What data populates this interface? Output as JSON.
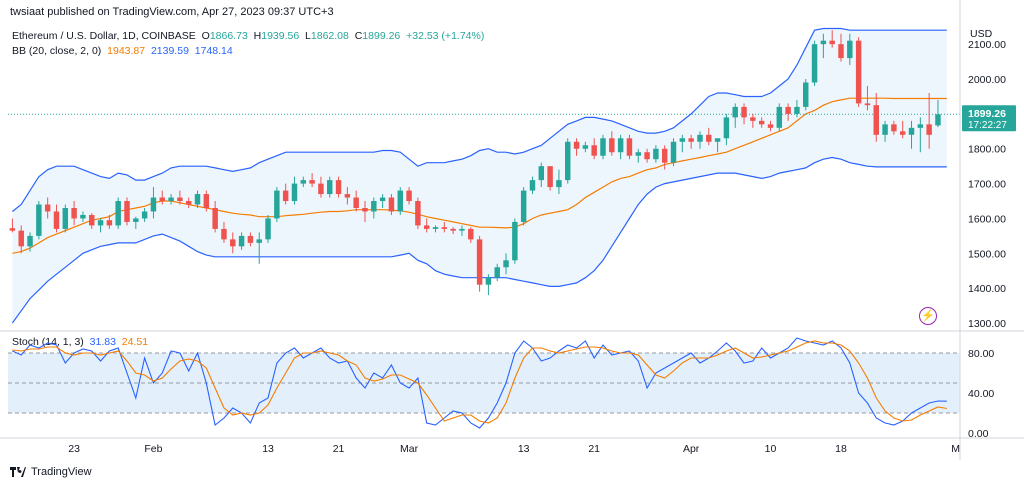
{
  "header": {
    "publish_line": "twsiaat published on TradingView.com, Apr 27, 2023 09:37 UTC+3"
  },
  "legend": {
    "symbol": "Ethereum / U.S. Dollar, 1D, COINBASE",
    "o_label": "O",
    "o_value": "1866.73",
    "h_label": "H",
    "h_value": "1939.56",
    "l_label": "L",
    "l_value": "1862.08",
    "c_label": "C",
    "c_value": "1899.26",
    "change": "+32.53 (+1.74%)",
    "bb_label": "BB (20, close, 2, 0)",
    "bb_basis": "1943.87",
    "bb_upper": "2139.59",
    "bb_lower": "1748.14",
    "stoch_label": "Stoch (14, 1, 3)",
    "stoch_k": "31.83",
    "stoch_d": "24.51"
  },
  "price_tag": {
    "price": "1899.26",
    "countdown": "17:22:27"
  },
  "footer": {
    "brand": "TradingView"
  },
  "colors": {
    "up": "#26a69a",
    "down": "#ef5350",
    "band": "#2962ff",
    "basis": "#f57c00",
    "band_fill": "#eef6fd",
    "stoch_fill": "#e3f0fb"
  },
  "icons": {
    "indicator_icon": "lightning-icon",
    "brand_icon": "tradingview-logo-icon"
  },
  "chart_data": [
    {
      "type": "candlestick",
      "title": "Ethereum / U.S. Dollar, 1D, COINBASE",
      "y_axis_label": "USD",
      "y_ticks": [
        1300,
        1400,
        1500,
        1600,
        1700,
        1800,
        1900,
        2000,
        2100
      ],
      "y_tick_labels": [
        "1300.00",
        "1400.00",
        "1500.00",
        "1600.00",
        "1700.00",
        "1800.00",
        "1900.00",
        "2000.00",
        "2100.00"
      ],
      "ylim": [
        1280,
        2155
      ],
      "x_ticks": [
        {
          "i": 7,
          "label": "23"
        },
        {
          "i": 16,
          "label": "Feb"
        },
        {
          "i": 29,
          "label": "13"
        },
        {
          "i": 37,
          "label": "21"
        },
        {
          "i": 45,
          "label": "Mar"
        },
        {
          "i": 58,
          "label": "13"
        },
        {
          "i": 66,
          "label": "21"
        },
        {
          "i": 77,
          "label": "Apr"
        },
        {
          "i": 86,
          "label": "10"
        },
        {
          "i": 94,
          "label": "18"
        },
        {
          "i": 107,
          "label": "M"
        }
      ],
      "x_count": 108,
      "ohlc": [
        [
          1572,
          1600,
          1560,
          1565
        ],
        [
          1565,
          1580,
          1500,
          1520
        ],
        [
          1520,
          1560,
          1505,
          1550
        ],
        [
          1550,
          1650,
          1540,
          1640
        ],
        [
          1640,
          1660,
          1600,
          1620
        ],
        [
          1620,
          1640,
          1560,
          1570
        ],
        [
          1570,
          1640,
          1560,
          1630
        ],
        [
          1630,
          1650,
          1580,
          1600
        ],
        [
          1600,
          1620,
          1590,
          1610
        ],
        [
          1610,
          1615,
          1570,
          1580
        ],
        [
          1580,
          1600,
          1560,
          1595
        ],
        [
          1595,
          1610,
          1570,
          1580
        ],
        [
          1580,
          1660,
          1570,
          1650
        ],
        [
          1650,
          1660,
          1580,
          1590
        ],
        [
          1590,
          1605,
          1570,
          1600
        ],
        [
          1600,
          1630,
          1590,
          1620
        ],
        [
          1620,
          1690,
          1600,
          1660
        ],
        [
          1660,
          1680,
          1640,
          1650
        ],
        [
          1650,
          1670,
          1640,
          1660
        ],
        [
          1660,
          1680,
          1640,
          1650
        ],
        [
          1650,
          1660,
          1630,
          1640
        ],
        [
          1640,
          1680,
          1630,
          1670
        ],
        [
          1670,
          1680,
          1620,
          1630
        ],
        [
          1630,
          1650,
          1560,
          1570
        ],
        [
          1570,
          1590,
          1530,
          1540
        ],
        [
          1540,
          1560,
          1500,
          1520
        ],
        [
          1520,
          1560,
          1510,
          1550
        ],
        [
          1550,
          1560,
          1520,
          1530
        ],
        [
          1530,
          1560,
          1470,
          1540
        ],
        [
          1540,
          1610,
          1530,
          1600
        ],
        [
          1600,
          1690,
          1590,
          1680
        ],
        [
          1680,
          1700,
          1640,
          1650
        ],
        [
          1650,
          1720,
          1640,
          1700
        ],
        [
          1700,
          1720,
          1690,
          1710
        ],
        [
          1710,
          1730,
          1690,
          1700
        ],
        [
          1700,
          1720,
          1660,
          1670
        ],
        [
          1670,
          1720,
          1660,
          1710
        ],
        [
          1710,
          1720,
          1660,
          1670
        ],
        [
          1670,
          1690,
          1640,
          1660
        ],
        [
          1660,
          1680,
          1620,
          1630
        ],
        [
          1630,
          1650,
          1590,
          1620
        ],
        [
          1620,
          1660,
          1600,
          1650
        ],
        [
          1650,
          1670,
          1630,
          1660
        ],
        [
          1660,
          1670,
          1610,
          1620
        ],
        [
          1620,
          1690,
          1610,
          1680
        ],
        [
          1680,
          1690,
          1640,
          1650
        ],
        [
          1650,
          1660,
          1570,
          1580
        ],
        [
          1580,
          1600,
          1560,
          1570
        ],
        [
          1570,
          1580,
          1560,
          1575
        ],
        [
          1575,
          1590,
          1560,
          1570
        ],
        [
          1570,
          1575,
          1555,
          1565
        ],
        [
          1565,
          1580,
          1550,
          1570
        ],
        [
          1570,
          1575,
          1530,
          1540
        ],
        [
          1540,
          1550,
          1390,
          1410
        ],
        [
          1410,
          1440,
          1380,
          1430
        ],
        [
          1430,
          1470,
          1420,
          1460
        ],
        [
          1460,
          1500,
          1440,
          1480
        ],
        [
          1480,
          1600,
          1470,
          1590
        ],
        [
          1590,
          1690,
          1580,
          1680
        ],
        [
          1680,
          1720,
          1670,
          1710
        ],
        [
          1710,
          1760,
          1690,
          1750
        ],
        [
          1750,
          1750,
          1680,
          1690
        ],
        [
          1690,
          1740,
          1670,
          1710
        ],
        [
          1710,
          1830,
          1700,
          1820
        ],
        [
          1820,
          1830,
          1780,
          1800
        ],
        [
          1800,
          1820,
          1790,
          1810
        ],
        [
          1810,
          1830,
          1770,
          1780
        ],
        [
          1780,
          1840,
          1770,
          1830
        ],
        [
          1830,
          1850,
          1780,
          1790
        ],
        [
          1790,
          1840,
          1770,
          1830
        ],
        [
          1830,
          1840,
          1770,
          1780
        ],
        [
          1780,
          1800,
          1760,
          1790
        ],
        [
          1790,
          1800,
          1760,
          1770
        ],
        [
          1770,
          1810,
          1760,
          1800
        ],
        [
          1800,
          1810,
          1740,
          1760
        ],
        [
          1760,
          1830,
          1750,
          1820
        ],
        [
          1820,
          1840,
          1790,
          1830
        ],
        [
          1830,
          1840,
          1800,
          1820
        ],
        [
          1820,
          1850,
          1800,
          1840
        ],
        [
          1840,
          1860,
          1810,
          1820
        ],
        [
          1820,
          1830,
          1790,
          1830
        ],
        [
          1830,
          1900,
          1810,
          1890
        ],
        [
          1890,
          1930,
          1860,
          1920
        ],
        [
          1920,
          1930,
          1870,
          1890
        ],
        [
          1890,
          1900,
          1860,
          1880
        ],
        [
          1880,
          1890,
          1860,
          1870
        ],
        [
          1870,
          1880,
          1850,
          1860
        ],
        [
          1860,
          1930,
          1850,
          1920
        ],
        [
          1920,
          1930,
          1880,
          1900
        ],
        [
          1900,
          1940,
          1890,
          1920
        ],
        [
          1920,
          2000,
          1910,
          1990
        ],
        [
          1990,
          2110,
          1980,
          2100
        ],
        [
          2100,
          2130,
          2060,
          2110
        ],
        [
          2110,
          2140,
          2090,
          2100
        ],
        [
          2100,
          2130,
          2050,
          2060
        ],
        [
          2060,
          2130,
          2040,
          2110
        ],
        [
          2110,
          2120,
          1920,
          1930
        ],
        [
          1930,
          1980,
          1910,
          1925
        ],
        [
          1925,
          1960,
          1820,
          1840
        ],
        [
          1840,
          1880,
          1820,
          1870
        ],
        [
          1870,
          1880,
          1840,
          1850
        ],
        [
          1850,
          1880,
          1830,
          1840
        ],
        [
          1840,
          1880,
          1800,
          1860
        ],
        [
          1860,
          1890,
          1790,
          1870
        ],
        [
          1870,
          1960,
          1800,
          1840
        ],
        [
          1867,
          1940,
          1862,
          1899
        ]
      ],
      "bb_upper": [
        1620,
        1640,
        1680,
        1720,
        1740,
        1750,
        1750,
        1750,
        1740,
        1730,
        1720,
        1715,
        1730,
        1725,
        1710,
        1710,
        1720,
        1730,
        1745,
        1750,
        1750,
        1750,
        1750,
        1745,
        1740,
        1735,
        1740,
        1745,
        1760,
        1770,
        1780,
        1790,
        1790,
        1790,
        1790,
        1790,
        1790,
        1790,
        1790,
        1790,
        1790,
        1790,
        1795,
        1795,
        1790,
        1770,
        1750,
        1760,
        1760,
        1760,
        1765,
        1770,
        1780,
        1795,
        1800,
        1790,
        1790,
        1785,
        1790,
        1800,
        1810,
        1830,
        1850,
        1870,
        1880,
        1890,
        1890,
        1885,
        1880,
        1870,
        1860,
        1850,
        1845,
        1845,
        1850,
        1860,
        1880,
        1900,
        1925,
        1950,
        1960,
        1960,
        1955,
        1950,
        1950,
        1950,
        1960,
        1980,
        2000,
        2040,
        2090,
        2140,
        2145,
        2145,
        2145,
        2140,
        2140,
        2140,
        2140,
        2140,
        2140,
        2140,
        2140,
        2140,
        2140,
        2140,
        2140
      ],
      "bb_basis": [
        1500,
        1505,
        1515,
        1530,
        1545,
        1555,
        1565,
        1575,
        1585,
        1595,
        1600,
        1605,
        1620,
        1625,
        1630,
        1635,
        1645,
        1650,
        1650,
        1645,
        1640,
        1635,
        1630,
        1625,
        1620,
        1615,
        1612,
        1610,
        1605,
        1605,
        1605,
        1608,
        1610,
        1612,
        1615,
        1618,
        1620,
        1620,
        1622,
        1625,
        1625,
        1625,
        1625,
        1624,
        1622,
        1618,
        1612,
        1605,
        1600,
        1595,
        1590,
        1585,
        1580,
        1575,
        1575,
        1574,
        1573,
        1575,
        1585,
        1600,
        1610,
        1615,
        1620,
        1625,
        1640,
        1660,
        1675,
        1690,
        1705,
        1715,
        1720,
        1730,
        1740,
        1745,
        1755,
        1760,
        1765,
        1770,
        1775,
        1780,
        1785,
        1790,
        1800,
        1810,
        1820,
        1830,
        1840,
        1850,
        1860,
        1880,
        1900,
        1910,
        1925,
        1935,
        1940,
        1945,
        1945,
        1945,
        1945,
        1945,
        1944,
        1944,
        1944,
        1944,
        1944,
        1944,
        1944
      ],
      "bb_lower": [
        1300,
        1335,
        1370,
        1395,
        1420,
        1440,
        1460,
        1480,
        1500,
        1510,
        1520,
        1525,
        1530,
        1530,
        1530,
        1540,
        1550,
        1555,
        1545,
        1535,
        1520,
        1505,
        1495,
        1490,
        1490,
        1490,
        1490,
        1490,
        1490,
        1490,
        1490,
        1490,
        1490,
        1490,
        1490,
        1490,
        1490,
        1490,
        1490,
        1490,
        1490,
        1490,
        1490,
        1490,
        1495,
        1500,
        1480,
        1470,
        1450,
        1440,
        1435,
        1430,
        1430,
        1430,
        1430,
        1430,
        1430,
        1425,
        1420,
        1415,
        1410,
        1405,
        1405,
        1410,
        1415,
        1430,
        1450,
        1480,
        1520,
        1560,
        1600,
        1640,
        1670,
        1690,
        1700,
        1705,
        1710,
        1715,
        1720,
        1725,
        1730,
        1730,
        1730,
        1725,
        1720,
        1715,
        1720,
        1730,
        1735,
        1740,
        1745,
        1760,
        1770,
        1775,
        1770,
        1760,
        1755,
        1750,
        1748,
        1748,
        1748,
        1748,
        1748,
        1748,
        1748,
        1748,
        1748
      ]
    },
    {
      "type": "line",
      "title": "Stoch (14, 1, 3)",
      "y_ticks": [
        0,
        40,
        80
      ],
      "y_tick_labels": [
        "0.00",
        "40.00",
        "80.00"
      ],
      "ylim": [
        -5,
        100
      ],
      "band": [
        20,
        80
      ],
      "midline": 50,
      "series": [
        {
          "name": "%K",
          "values": [
            82,
            78,
            88,
            85,
            90,
            88,
            70,
            80,
            84,
            82,
            72,
            82,
            85,
            60,
            35,
            75,
            50,
            60,
            82,
            80,
            62,
            80,
            50,
            8,
            15,
            25,
            20,
            10,
            30,
            35,
            70,
            80,
            85,
            75,
            80,
            85,
            75,
            70,
            72,
            55,
            45,
            60,
            55,
            68,
            50,
            45,
            55,
            10,
            8,
            15,
            22,
            20,
            10,
            5,
            15,
            30,
            50,
            80,
            92,
            85,
            72,
            75,
            82,
            88,
            85,
            92,
            75,
            88,
            78,
            80,
            82,
            72,
            45,
            60,
            65,
            70,
            75,
            80,
            70,
            75,
            82,
            90,
            82,
            70,
            72,
            85,
            75,
            80,
            85,
            95,
            92,
            90,
            88,
            92,
            85,
            70,
            40,
            30,
            15,
            10,
            8,
            12,
            20,
            25,
            30,
            32,
            31.8
          ]
        },
        {
          "name": "%D",
          "values": [
            83,
            82,
            84,
            84,
            86,
            86,
            80,
            78,
            80,
            80,
            78,
            80,
            82,
            72,
            60,
            58,
            52,
            55,
            64,
            72,
            74,
            72,
            65,
            45,
            25,
            18,
            20,
            18,
            20,
            28,
            45,
            60,
            75,
            80,
            80,
            82,
            80,
            78,
            72,
            68,
            55,
            52,
            54,
            58,
            58,
            54,
            50,
            38,
            25,
            12,
            15,
            18,
            18,
            12,
            10,
            15,
            30,
            55,
            75,
            85,
            85,
            82,
            80,
            82,
            84,
            86,
            86,
            85,
            82,
            80,
            80,
            78,
            68,
            58,
            55,
            62,
            70,
            75,
            75,
            75,
            78,
            82,
            85,
            80,
            75,
            76,
            78,
            80,
            82,
            86,
            90,
            92,
            90,
            90,
            88,
            82,
            70,
            55,
            35,
            22,
            15,
            12,
            13,
            18,
            22,
            26,
            24.5
          ]
        }
      ]
    }
  ]
}
